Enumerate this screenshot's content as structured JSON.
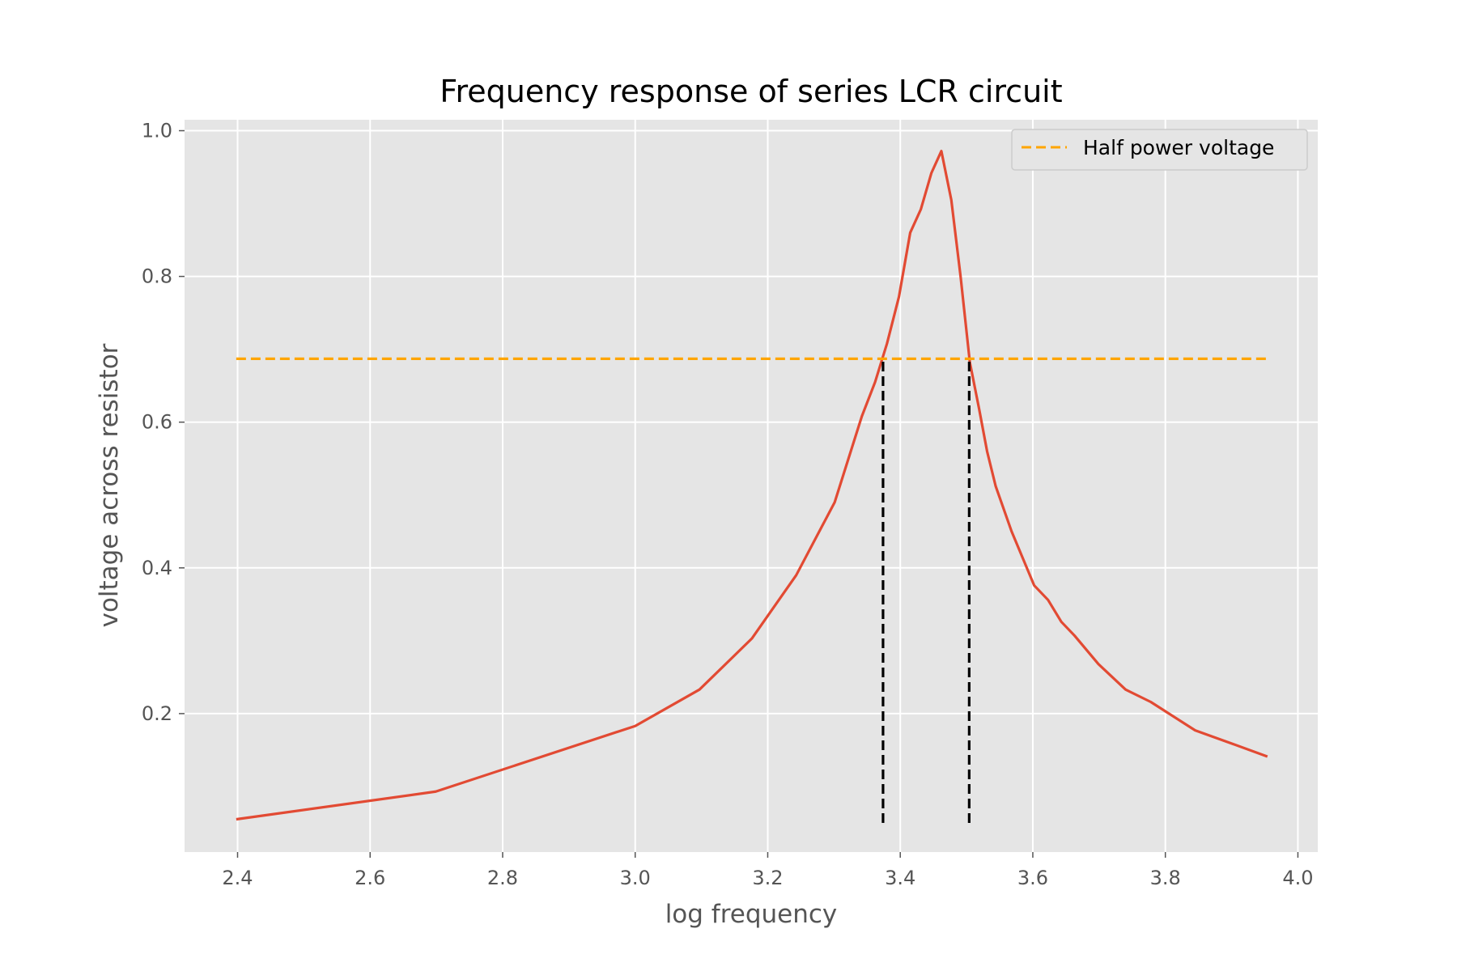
{
  "chart_data": {
    "type": "line",
    "title": "Frequency response of series LCR circuit",
    "xlabel": "log frequency",
    "ylabel": "voltage across resistor",
    "xlim": [
      2.32,
      4.03
    ],
    "ylim": [
      0.01,
      1.015
    ],
    "x_ticks": [
      2.4,
      2.6,
      2.8,
      3.0,
      3.2,
      3.4,
      3.6,
      3.8,
      4.0
    ],
    "x_tick_labels": [
      "2.4",
      "2.6",
      "2.8",
      "3.0",
      "3.2",
      "3.4",
      "3.6",
      "3.8",
      "4.0"
    ],
    "y_ticks": [
      0.2,
      0.4,
      0.6,
      0.8,
      1.0
    ],
    "y_tick_labels": [
      "0.2",
      "0.4",
      "0.6",
      "0.8",
      "1.0"
    ],
    "grid": true,
    "legend_position": "top-right",
    "series": [
      {
        "style": "solid",
        "color": "#E24A33",
        "x": [
          2.398,
          2.699,
          3.0,
          3.097,
          3.176,
          3.243,
          3.301,
          3.342,
          3.362,
          3.38,
          3.398,
          3.415,
          3.431,
          3.447,
          3.462,
          3.477,
          3.491,
          3.505,
          3.519,
          3.531,
          3.544,
          3.568,
          3.602,
          3.623,
          3.643,
          3.663,
          3.699,
          3.74,
          3.778,
          3.845,
          3.903,
          3.954
        ],
        "y": [
          0.055,
          0.093,
          0.183,
          0.233,
          0.303,
          0.39,
          0.49,
          0.608,
          0.655,
          0.708,
          0.772,
          0.86,
          0.892,
          0.942,
          0.972,
          0.905,
          0.8,
          0.682,
          0.618,
          0.56,
          0.512,
          0.45,
          0.376,
          0.356,
          0.326,
          0.307,
          0.268,
          0.233,
          0.216,
          0.177,
          0.158,
          0.141
        ]
      },
      {
        "name": "Half power voltage",
        "style": "dashed",
        "color": "#FFA500",
        "x": [
          2.398,
          3.954
        ],
        "y": [
          0.687,
          0.687
        ]
      },
      {
        "style": "dashed",
        "color": "#000000",
        "x": [
          3.374,
          3.374
        ],
        "y": [
          0.05,
          0.687
        ]
      },
      {
        "style": "dashed",
        "color": "#000000",
        "x": [
          3.504,
          3.504
        ],
        "y": [
          0.05,
          0.687
        ]
      }
    ]
  },
  "colors": {
    "plot_background": "#E5E5E5",
    "grid": "#FFFFFF",
    "response_line": "#E24A33",
    "half_power_line": "#FFA500",
    "marker_lines": "#000000"
  }
}
